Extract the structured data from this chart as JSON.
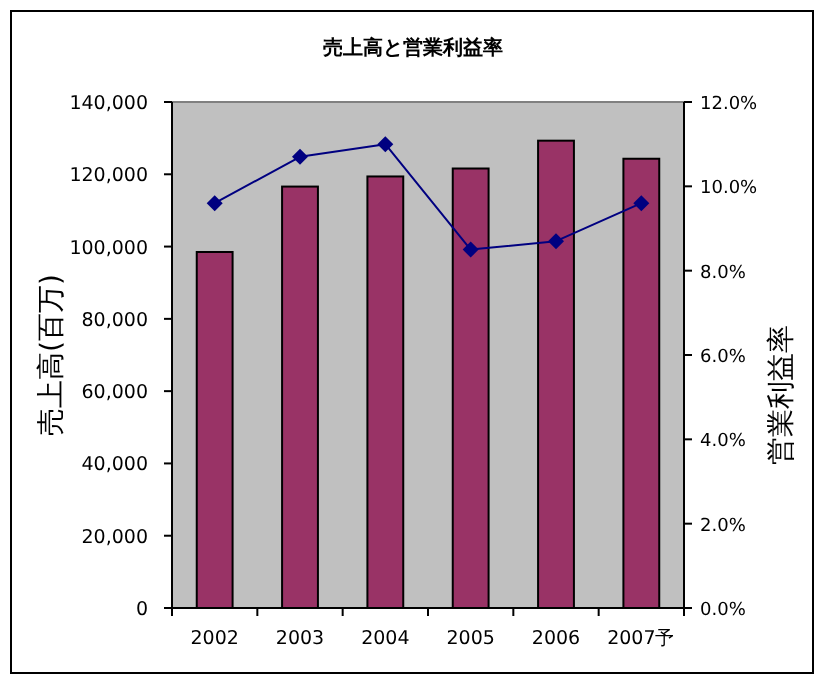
{
  "chart_data": {
    "type": "bar",
    "title": "売上高と営業利益率",
    "ylabel": "売上高(百万)",
    "y2label": "営業利益率",
    "categories": [
      "2002",
      "2003",
      "2004",
      "2005",
      "2006",
      "2007予"
    ],
    "series": [
      {
        "color": "#993366",
        "values": [
          98500,
          116600,
          119400,
          121600,
          129300,
          124300
        ]
      },
      {
        "type": "line",
        "axis": "y2",
        "color": "#000080",
        "marker": "diamond",
        "values": [
          9.6,
          10.7,
          11.0,
          8.5,
          8.7,
          9.6
        ]
      }
    ],
    "ylim": [
      0,
      140000
    ],
    "yticks": [
      {
        "value": 0,
        "label": "0"
      },
      {
        "value": 20000,
        "label": "20,000"
      },
      {
        "value": 40000,
        "label": "40,000"
      },
      {
        "value": 60000,
        "label": "60,000"
      },
      {
        "value": 80000,
        "label": "80,000"
      },
      {
        "value": 100000,
        "label": "100,000"
      },
      {
        "value": 120000,
        "label": "120,000"
      },
      {
        "value": 140000,
        "label": "140,000"
      }
    ],
    "y2lim": [
      0,
      12
    ],
    "y2ticks": [
      {
        "value": 0,
        "label": "0.0%"
      },
      {
        "value": 2,
        "label": "2.0%"
      },
      {
        "value": 4,
        "label": "4.0%"
      },
      {
        "value": 6,
        "label": "6.0%"
      },
      {
        "value": 8,
        "label": "8.0%"
      },
      {
        "value": 10,
        "label": "10.0%"
      },
      {
        "value": 12,
        "label": "12.0%"
      }
    ],
    "grid": false
  }
}
